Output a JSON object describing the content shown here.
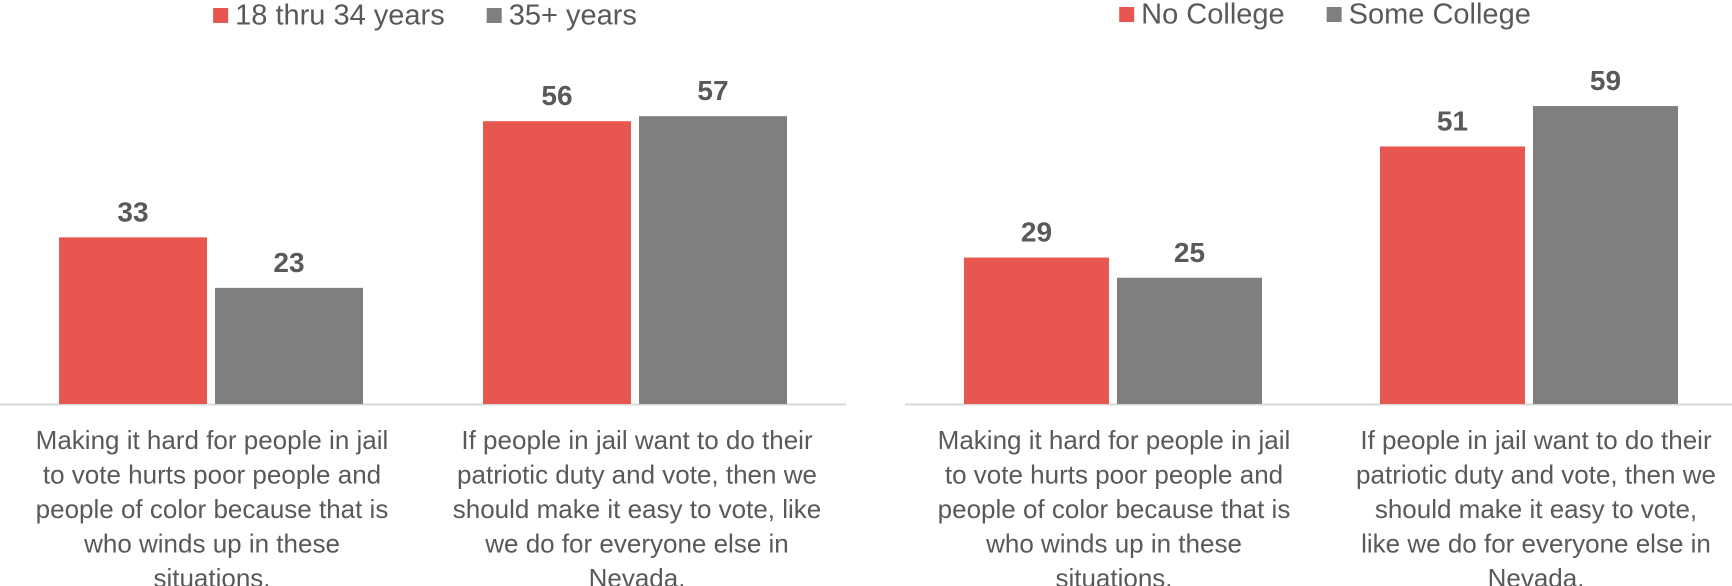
{
  "chart_data": [
    {
      "type": "bar",
      "categories": [
        [
          "Making it hard for people in jail",
          "to vote hurts poor people and",
          "people of color because that is",
          "who winds up in these",
          "situations."
        ],
        [
          "If people in jail want to do their",
          "patriotic duty and vote, then we",
          "should make it easy to vote, like",
          "we do for everyone else in",
          "Nevada."
        ]
      ],
      "series": [
        {
          "name": "18 thru 34 years",
          "color": "#E8574F",
          "values": [
            33,
            56
          ]
        },
        {
          "name": "35+ years",
          "color": "#7F7F7F",
          "values": [
            23,
            57
          ]
        }
      ],
      "ylim": [
        0,
        63
      ],
      "grid": false,
      "legend": "top-center",
      "data_labels": true
    },
    {
      "type": "bar",
      "categories": [
        [
          "Making it hard for people in jail",
          "to vote hurts poor people and",
          "people of color because that is",
          "who winds up in these",
          "situations."
        ],
        [
          "If people in jail want to do their",
          "patriotic duty and vote, then we",
          "should make it easy to vote,",
          "like we do for everyone else in",
          "Nevada."
        ]
      ],
      "series": [
        {
          "name": "No College",
          "color": "#E8574F",
          "values": [
            29,
            51
          ]
        },
        {
          "name": "Some College",
          "color": "#7F7F7F",
          "values": [
            25,
            59
          ]
        }
      ],
      "ylim": [
        0,
        63
      ],
      "grid": false,
      "legend": "top-center",
      "data_labels": true
    }
  ]
}
